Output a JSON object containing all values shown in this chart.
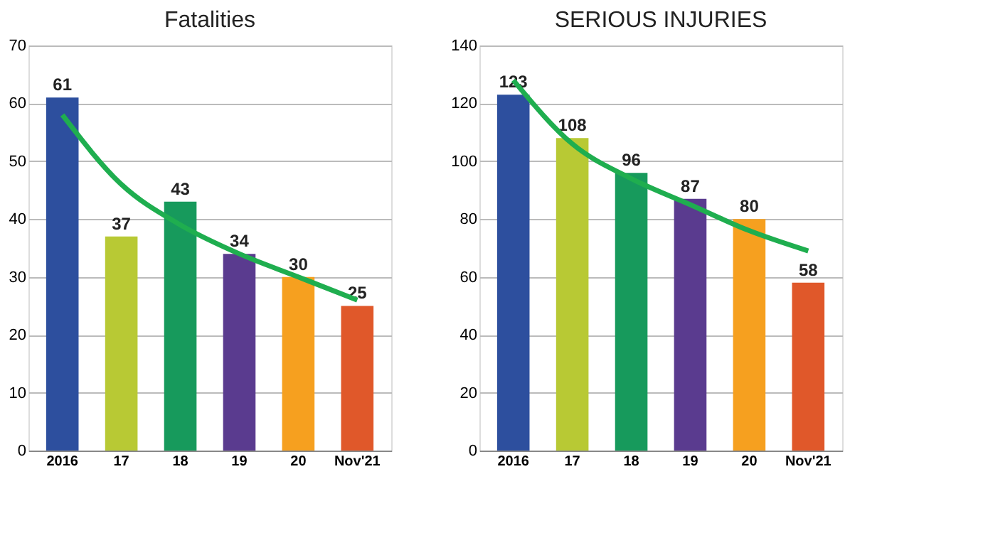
{
  "chart_data": [
    {
      "type": "bar",
      "title": "Fatalities",
      "categories": [
        "2016",
        "17",
        "18",
        "19",
        "20",
        "Nov'21"
      ],
      "ylim": [
        0,
        70
      ],
      "yticks": [
        0,
        10,
        20,
        30,
        40,
        50,
        60,
        70
      ],
      "grid": "y",
      "legend": false,
      "series": [
        {
          "colors": [
            "#2d4f9e",
            "#b8c934",
            "#179a5c",
            "#5a3b8f",
            "#f6a01f",
            "#e0582a"
          ],
          "values": [
            61,
            37,
            43,
            34,
            30,
            25
          ],
          "value_labels": [
            "61",
            "37",
            "43",
            "34",
            "30",
            "25"
          ]
        },
        {
          "type": "line",
          "color": "#1fae4f",
          "values": [
            58,
            46,
            39,
            34,
            30,
            26
          ]
        }
      ]
    },
    {
      "type": "bar",
      "title": "SERIOUS INJURIES",
      "categories": [
        "2016",
        "17",
        "18",
        "19",
        "20",
        "Nov'21"
      ],
      "ylim": [
        0,
        140
      ],
      "yticks": [
        0,
        20,
        40,
        60,
        80,
        100,
        120,
        140
      ],
      "grid": "y",
      "legend": false,
      "series": [
        {
          "colors": [
            "#2d4f9e",
            "#b8c934",
            "#179a5c",
            "#5a3b8f",
            "#f6a01f",
            "#e0582a"
          ],
          "values": [
            123,
            108,
            96,
            87,
            80,
            58
          ],
          "value_labels": [
            "123",
            "108",
            "96",
            "87",
            "80",
            "58"
          ]
        },
        {
          "type": "line",
          "color": "#1fae4f",
          "values": [
            128,
            106,
            94,
            85,
            76,
            69
          ]
        }
      ]
    }
  ]
}
